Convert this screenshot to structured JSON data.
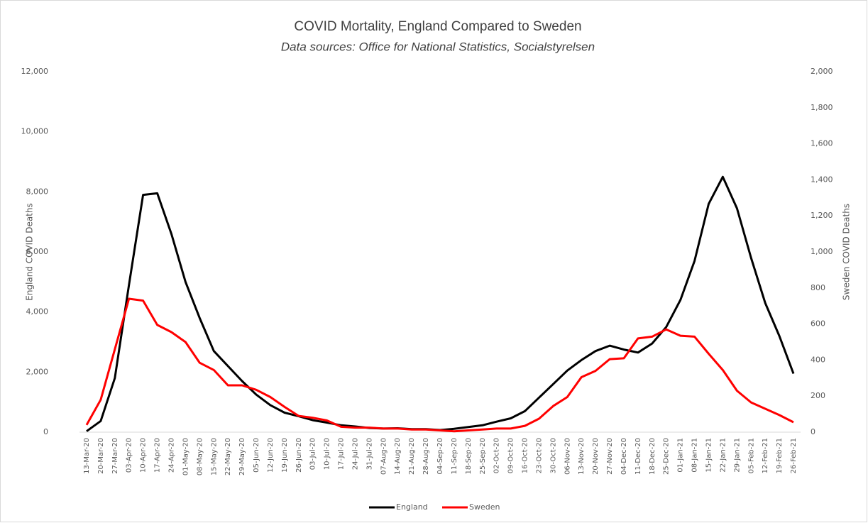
{
  "chart_data": {
    "type": "line",
    "title": "COVID Mortality, England Compared to Sweden",
    "subtitle": "Data sources: Office for National Statistics, Socialstyrelsen",
    "y_label": "England COVID Deaths",
    "y2_label": "Sweden COVID Deaths",
    "categories": [
      "13-Mar-20",
      "20-Mar-20",
      "27-Mar-20",
      "03-Apr-20",
      "10-Apr-20",
      "17-Apr-20",
      "24-Apr-20",
      "01-May-20",
      "08-May-20",
      "15-May-20",
      "22-May-20",
      "29-May-20",
      "05-Jun-20",
      "12-Jun-20",
      "19-Jun-20",
      "26-Jun-20",
      "03-Jul-20",
      "10-Jul-20",
      "17-Jul-20",
      "24-Jul-20",
      "31-Jul-20",
      "07-Aug-20",
      "14-Aug-20",
      "21-Aug-20",
      "28-Aug-20",
      "04-Sep-20",
      "11-Sep-20",
      "18-Sep-20",
      "25-Sep-20",
      "02-Oct-20",
      "09-Oct-20",
      "16-Oct-20",
      "23-Oct-20",
      "30-Oct-20",
      "06-Nov-20",
      "13-Nov-20",
      "20-Nov-20",
      "27-Nov-20",
      "04-Dec-20",
      "11-Dec-20",
      "18-Dec-20",
      "25-Dec-20",
      "01-Jan-21",
      "08-Jan-21",
      "15-Jan-21",
      "22-Jan-21",
      "29-Jan-21",
      "05-Feb-21",
      "12-Feb-21",
      "19-Feb-21",
      "26-Feb-21"
    ],
    "series": [
      {
        "name": "England",
        "color": "#000000",
        "axis": "y",
        "values": [
          30,
          370,
          1800,
          4900,
          7900,
          7950,
          6600,
          5000,
          3800,
          2700,
          2200,
          1700,
          1250,
          900,
          650,
          530,
          400,
          320,
          230,
          190,
          140,
          120,
          130,
          100,
          100,
          70,
          110,
          170,
          230,
          350,
          460,
          700,
          1150,
          1600,
          2050,
          2400,
          2700,
          2880,
          2750,
          2650,
          2950,
          3500,
          4400,
          5700,
          7600,
          8500,
          7450,
          5800,
          4300,
          3200,
          1950
        ]
      },
      {
        "name": "Sweden",
        "color": "#ff0000",
        "axis": "y2",
        "values": [
          40,
          180,
          460,
          740,
          730,
          595,
          555,
          500,
          385,
          345,
          260,
          260,
          235,
          195,
          140,
          90,
          80,
          65,
          30,
          25,
          25,
          20,
          20,
          15,
          15,
          10,
          5,
          10,
          15,
          20,
          20,
          35,
          75,
          145,
          195,
          305,
          340,
          405,
          410,
          520,
          530,
          570,
          535,
          530,
          435,
          345,
          230,
          165,
          130,
          95,
          55
        ]
      }
    ],
    "ylim": [
      0,
      12000
    ],
    "yticks": [
      0,
      {
        "value": 2000,
        "label": "2,000"
      },
      {
        "value": 4000,
        "label": "4,000"
      },
      {
        "value": 6000,
        "label": "6,000"
      },
      {
        "value": 8000,
        "label": "8,000"
      },
      {
        "value": 10000,
        "label": "10,000"
      },
      {
        "value": 12000,
        "label": "12,000"
      }
    ],
    "y2lim": [
      0,
      2000
    ],
    "y2ticks": [
      0,
      200,
      400,
      600,
      800,
      {
        "value": 1000,
        "label": "1,000"
      },
      {
        "value": 1200,
        "label": "1,200"
      },
      {
        "value": 1400,
        "label": "1,400"
      },
      {
        "value": 1600,
        "label": "1,600"
      },
      {
        "value": 1800,
        "label": "1,800"
      },
      {
        "value": 2000,
        "label": "2,000"
      }
    ],
    "legend": "bottom"
  }
}
